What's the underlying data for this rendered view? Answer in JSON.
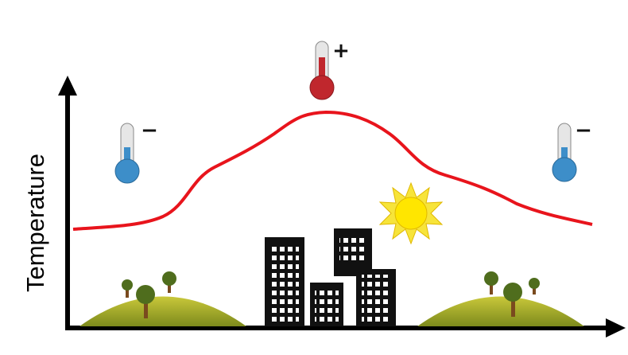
{
  "y_axis_label": "Temperature",
  "thermometers": [
    {
      "sign": "−"
    },
    {
      "sign": "+"
    },
    {
      "sign": "−"
    }
  ]
}
